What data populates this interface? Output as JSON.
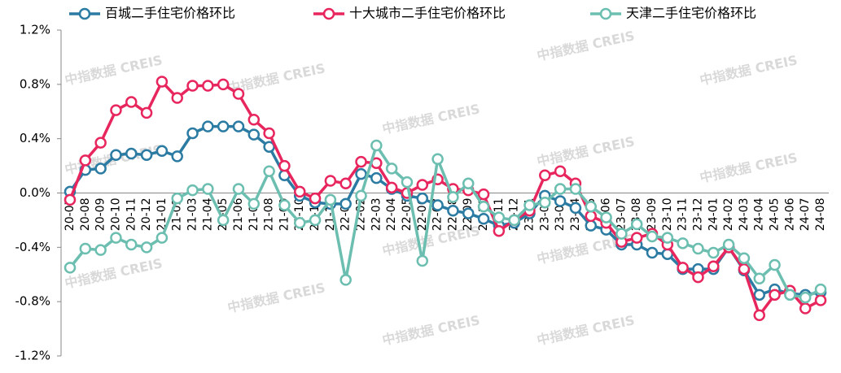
{
  "chart_data": {
    "type": "line",
    "watermark": "中指数据 CREIS",
    "categories": [
      "20-07",
      "20-08",
      "20-09",
      "20-10",
      "20-11",
      "20-12",
      "21-01",
      "21-02",
      "21-03",
      "21-04",
      "21-05",
      "21-06",
      "21-07",
      "21-08",
      "21-09",
      "21-10",
      "21-11",
      "21-12",
      "22-01",
      "22-02",
      "22-03",
      "22-04",
      "22-05",
      "22-06",
      "22-07",
      "22-08",
      "22-09",
      "22-10",
      "22-11",
      "22-12",
      "23-01",
      "23-02",
      "23-03",
      "23-04",
      "23-05",
      "23-06",
      "23-07",
      "23-08",
      "23-09",
      "23-10",
      "23-11",
      "23-12",
      "24-01",
      "24-02",
      "24-03",
      "24-04",
      "24-05",
      "24-06",
      "24-07",
      "24-08"
    ],
    "series": [
      {
        "name": "百城二手住宅价格环比",
        "color": "#2b7ba3",
        "values": [
          0.01,
          0.17,
          0.18,
          0.28,
          0.29,
          0.28,
          0.31,
          0.27,
          0.44,
          0.49,
          0.49,
          0.49,
          0.43,
          0.34,
          0.13,
          -0.02,
          -0.07,
          -0.08,
          -0.08,
          0.14,
          0.11,
          0.03,
          -0.02,
          -0.04,
          -0.09,
          -0.13,
          -0.15,
          -0.19,
          -0.24,
          -0.22,
          -0.15,
          -0.02,
          -0.06,
          -0.11,
          -0.24,
          -0.27,
          -0.38,
          -0.38,
          -0.44,
          -0.45,
          -0.56,
          -0.56,
          -0.56,
          -0.4,
          -0.57,
          -0.75,
          -0.71,
          -0.74,
          -0.75,
          -0.73
        ]
      },
      {
        "name": "十大城市二手住宅价格环比",
        "color": "#e8265e",
        "values": [
          -0.05,
          0.24,
          0.37,
          0.61,
          0.67,
          0.59,
          0.82,
          0.7,
          0.79,
          0.79,
          0.8,
          0.73,
          0.54,
          0.44,
          0.2,
          0.01,
          -0.04,
          0.09,
          0.07,
          0.23,
          0.22,
          0.04,
          0.0,
          0.06,
          0.1,
          0.03,
          0.02,
          -0.01,
          -0.28,
          -0.2,
          -0.13,
          0.13,
          0.16,
          0.07,
          -0.17,
          -0.22,
          -0.36,
          -0.33,
          -0.3,
          -0.38,
          -0.55,
          -0.62,
          -0.54,
          -0.4,
          -0.56,
          -0.9,
          -0.75,
          -0.72,
          -0.85,
          -0.79
        ]
      },
      {
        "name": "天津二手住宅价格环比",
        "color": "#6cbfb0",
        "values": [
          -0.55,
          -0.41,
          -0.42,
          -0.33,
          -0.38,
          -0.4,
          -0.33,
          -0.04,
          0.02,
          0.03,
          -0.2,
          0.03,
          -0.08,
          0.16,
          -0.09,
          -0.22,
          -0.2,
          -0.05,
          -0.64,
          -0.02,
          0.35,
          0.18,
          0.08,
          -0.5,
          0.25,
          -0.03,
          0.07,
          -0.1,
          -0.18,
          -0.2,
          -0.09,
          -0.07,
          0.03,
          0.03,
          -0.1,
          -0.18,
          -0.3,
          -0.23,
          -0.32,
          -0.33,
          -0.37,
          -0.41,
          -0.44,
          -0.38,
          -0.48,
          -0.63,
          -0.53,
          -0.75,
          -0.77,
          -0.71
        ]
      }
    ],
    "ylim": [
      -1.2,
      1.2
    ],
    "yticks": [
      {
        "value": 1.2,
        "label": "1.2%"
      },
      {
        "value": 0.8,
        "label": "0.8%"
      },
      {
        "value": 0.4,
        "label": "0.4%"
      },
      {
        "value": 0,
        "label": "0.0%"
      },
      {
        "value": -0.4,
        "label": "-0.4%"
      },
      {
        "value": -0.8,
        "label": "-0.8%"
      },
      {
        "value": -1.2,
        "label": "-1.2%"
      }
    ],
    "legend": "top"
  }
}
